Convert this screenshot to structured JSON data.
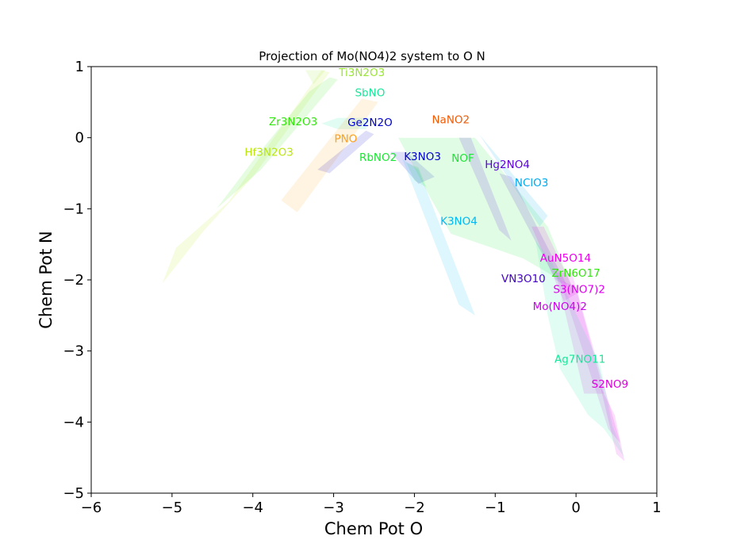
{
  "chart_data": {
    "type": "area",
    "title": "Projection of Mo(NO4)2 system to O N",
    "xlabel": "Chem Pot O",
    "ylabel": "Chem Pot N",
    "xlim": [
      -6,
      1
    ],
    "ylim": [
      -5,
      1
    ],
    "xticks": [
      -6,
      -5,
      -4,
      -3,
      -2,
      -1,
      0,
      1
    ],
    "yticks": [
      -5,
      -4,
      -3,
      -2,
      -1,
      0,
      1
    ],
    "xtick_labels": [
      "−6",
      "−5",
      "−4",
      "−3",
      "−2",
      "−1",
      "0",
      "1"
    ],
    "ytick_labels": [
      "−5",
      "−4",
      "−3",
      "−2",
      "−1",
      "0",
      "1"
    ],
    "grid": false,
    "legend": "none",
    "regions": [
      {
        "name": "Hf3N2O3",
        "color": "#b8e60c",
        "label_at": [
          -3.8,
          -0.2
        ],
        "polygon": [
          [
            -5.12,
            -2.05
          ],
          [
            -4.95,
            -1.55
          ],
          [
            -4.3,
            -0.9
          ],
          [
            -3.15,
            0.95
          ],
          [
            -3.05,
            0.92
          ],
          [
            -4.0,
            -0.55
          ],
          [
            -4.6,
            -1.3
          ]
        ]
      },
      {
        "name": "Ti3N2O3",
        "color": "#99e633",
        "label_at": [
          -2.65,
          0.92
        ],
        "polygon": [
          [
            -3.35,
            0.95
          ],
          [
            -3.1,
            0.95
          ],
          [
            -3.25,
            0.75
          ]
        ]
      },
      {
        "name": "Zr3N2O3",
        "color": "#33e60f",
        "label_at": [
          -3.5,
          0.23
        ],
        "polygon": [
          [
            -4.45,
            -1.0
          ],
          [
            -3.95,
            -0.25
          ],
          [
            -3.3,
            0.65
          ],
          [
            -3.05,
            0.85
          ],
          [
            -2.95,
            0.82
          ],
          [
            -3.15,
            0.55
          ],
          [
            -3.9,
            -0.45
          ]
        ]
      },
      {
        "name": "SbNO",
        "color": "#1ae699",
        "label_at": [
          -2.55,
          0.64
        ],
        "polygon": [
          [
            -3.15,
            0.2
          ],
          [
            -2.95,
            0.28
          ],
          [
            -2.55,
            0.28
          ],
          [
            -2.6,
            0.12
          ],
          [
            -2.95,
            0.12
          ]
        ]
      },
      {
        "name": "PNO",
        "color": "#ffa01a",
        "label_at": [
          -2.85,
          -0.01
        ],
        "polygon": [
          [
            -3.65,
            -0.88
          ],
          [
            -3.45,
            -1.05
          ],
          [
            -2.45,
            0.5
          ],
          [
            -2.65,
            0.55
          ]
        ]
      },
      {
        "name": "Ge2N2O",
        "color": "#0000cc",
        "label_at": [
          -2.55,
          0.22
        ],
        "polygon": [
          [
            -3.2,
            -0.45
          ],
          [
            -3.05,
            -0.5
          ],
          [
            -2.5,
            0.05
          ],
          [
            -2.6,
            0.1
          ]
        ]
      },
      {
        "name": "RbNO2",
        "color": "#1ae633",
        "label_at": [
          -2.45,
          -0.27
        ],
        "polygon": [
          [
            -2.1,
            -0.35
          ],
          [
            -1.95,
            -0.42
          ],
          [
            -1.85,
            -0.7
          ],
          [
            -2.0,
            -0.6
          ]
        ]
      },
      {
        "name": "K3NO3",
        "color": "#0000cc",
        "label_at": [
          -1.9,
          -0.26
        ],
        "polygon": [
          [
            -2.3,
            -0.2
          ],
          [
            -2.1,
            -0.2
          ],
          [
            -1.75,
            -0.55
          ],
          [
            -1.95,
            -0.65
          ]
        ]
      },
      {
        "name": "K3NO4",
        "color": "#00b8f0",
        "label_at": [
          -1.45,
          -1.17
        ],
        "polygon": [
          [
            -2.15,
            -0.3
          ],
          [
            -1.95,
            -0.45
          ],
          [
            -1.25,
            -2.5
          ],
          [
            -1.45,
            -2.35
          ]
        ]
      },
      {
        "name": "NOF",
        "color": "#1ae633",
        "label_at": [
          -1.4,
          -0.28
        ],
        "polygon": [
          [
            -2.2,
            0.0
          ],
          [
            -1.25,
            0.0
          ],
          [
            -0.35,
            -1.25
          ],
          [
            -0.05,
            -2.1
          ],
          [
            -0.65,
            -1.7
          ],
          [
            -1.55,
            -1.35
          ],
          [
            -1.8,
            -0.85
          ]
        ]
      },
      {
        "name": "NaNO2",
        "color": "#f05a05",
        "label_at": [
          -1.55,
          0.26
        ],
        "polygon": []
      },
      {
        "name": "Hg2NO4",
        "color": "#5a00dd",
        "label_at": [
          -0.85,
          -0.37
        ],
        "polygon": [
          [
            -1.45,
            0.0
          ],
          [
            -1.3,
            0.0
          ],
          [
            -0.8,
            -1.45
          ],
          [
            -0.95,
            -1.3
          ]
        ]
      },
      {
        "name": "NClO3",
        "color": "#00aaee",
        "label_at": [
          -0.55,
          -0.63
        ],
        "polygon": [
          [
            -1.2,
            0.05
          ],
          [
            -0.85,
            -0.55
          ],
          [
            -0.45,
            -1.25
          ],
          [
            -0.35,
            -1.1
          ]
        ]
      },
      {
        "name": "VN3O10",
        "color": "#4400cc",
        "label_at": [
          -0.65,
          -1.98
        ],
        "polygon": [
          [
            -0.95,
            -0.5
          ],
          [
            -0.8,
            -0.55
          ],
          [
            -0.1,
            -2.1
          ],
          [
            -0.25,
            -2.0
          ]
        ]
      },
      {
        "name": "AuN5O14",
        "color": "#ee00ee",
        "label_at": [
          -0.13,
          -1.69
        ],
        "polygon": [
          [
            -0.55,
            -1.25
          ],
          [
            -0.4,
            -1.25
          ],
          [
            0.0,
            -2.2
          ],
          [
            -0.15,
            -2.3
          ]
        ]
      },
      {
        "name": "ZrN6O17",
        "color": "#33e60f",
        "label_at": [
          0.0,
          -1.9
        ],
        "polygon": []
      },
      {
        "name": "S3(NO7)2",
        "color": "#dd00ee",
        "label_at": [
          0.04,
          -2.13
        ],
        "polygon": [
          [
            -0.25,
            -1.9
          ],
          [
            -0.05,
            -1.9
          ],
          [
            0.35,
            -3.6
          ],
          [
            0.1,
            -3.6
          ]
        ]
      },
      {
        "name": "Mo(NO4)2",
        "color": "#cc00ee",
        "label_at": [
          -0.2,
          -2.37
        ],
        "polygon": [
          [
            -0.2,
            -2.0
          ],
          [
            0.0,
            -2.1
          ],
          [
            0.55,
            -4.3
          ],
          [
            0.4,
            -4.1
          ]
        ]
      },
      {
        "name": "Ag7NO11",
        "color": "#1ae699",
        "label_at": [
          0.05,
          -3.11
        ],
        "polygon": [
          [
            -0.5,
            -1.45
          ],
          [
            -0.3,
            -1.75
          ],
          [
            0.3,
            -3.2
          ],
          [
            0.45,
            -4.05
          ],
          [
            0.6,
            -4.5
          ],
          [
            0.35,
            -4.1
          ],
          [
            0.15,
            -3.9
          ],
          [
            -0.2,
            -3.25
          ],
          [
            -0.35,
            -2.5
          ]
        ]
      },
      {
        "name": "S2NO9",
        "color": "#dd00dd",
        "label_at": [
          0.42,
          -3.46
        ],
        "polygon": [
          [
            0.3,
            -3.5
          ],
          [
            0.48,
            -3.9
          ],
          [
            0.6,
            -4.55
          ],
          [
            0.5,
            -4.45
          ]
        ]
      }
    ]
  }
}
